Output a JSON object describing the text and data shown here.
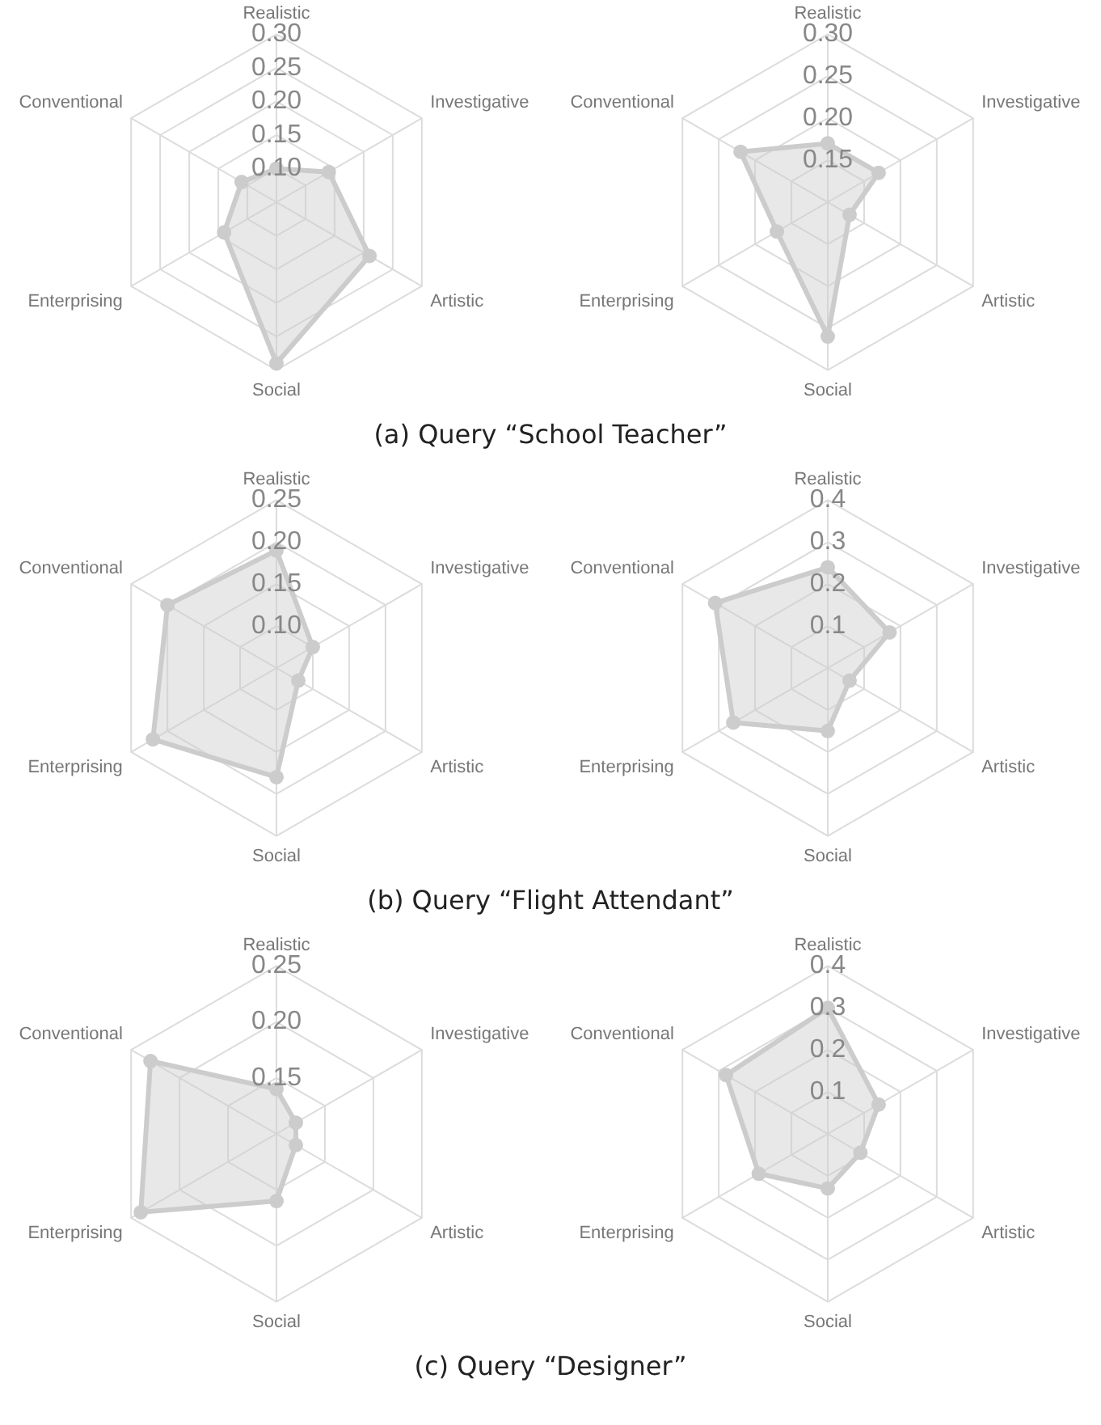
{
  "chart_data": [
    {
      "type": "radar",
      "categories": [
        "Realistic",
        "Investigative",
        "Artistic",
        "Social",
        "Enterprising",
        "Conventional"
      ],
      "series": [
        {
          "color": "#cccccc",
          "values": [
            0.1,
            0.14,
            0.21,
            0.29,
            0.14,
            0.11
          ]
        }
      ],
      "ylim": [
        0.05,
        0.3
      ],
      "yticks": [
        {
          "value": 0.1,
          "label": "0.10"
        },
        0.15,
        {
          "value": 0.2,
          "label": "0.20"
        },
        0.25,
        {
          "value": 0.3,
          "label": "0.30"
        }
      ],
      "legend": false,
      "marker": "circle",
      "annotations": [
        "(a) Query “School Teacher”"
      ]
    },
    {
      "type": "radar",
      "categories": [
        "Realistic",
        "Investigative",
        "Artistic",
        "Social",
        "Enterprising",
        "Conventional"
      ],
      "series": [
        {
          "color": "#cccccc",
          "values": [
            0.17,
            0.17,
            0.13,
            0.26,
            0.17,
            0.22
          ]
        }
      ],
      "ylim": [
        0.1,
        0.3
      ],
      "yticks": [
        0.15,
        {
          "value": 0.2,
          "label": "0.20"
        },
        0.25,
        {
          "value": 0.3,
          "label": "0.30"
        }
      ],
      "legend": false,
      "marker": "circle"
    },
    {
      "type": "radar",
      "categories": [
        "Realistic",
        "Investigative",
        "Artistic",
        "Social",
        "Enterprising",
        "Conventional"
      ],
      "series": [
        {
          "color": "#cccccc",
          "values": [
            0.19,
            0.1,
            0.08,
            0.18,
            0.22,
            0.2
          ]
        }
      ],
      "ylim": [
        0.05,
        0.25
      ],
      "yticks": [
        {
          "value": 0.1,
          "label": "0.10"
        },
        0.15,
        {
          "value": 0.2,
          "label": "0.20"
        },
        0.25
      ],
      "legend": false,
      "marker": "circle",
      "annotations": [
        "(b) Query “Flight Attendant”"
      ]
    },
    {
      "type": "radar",
      "categories": [
        "Realistic",
        "Investigative",
        "Artistic",
        "Social",
        "Enterprising",
        "Conventional"
      ],
      "series": [
        {
          "color": "#cccccc",
          "values": [
            0.24,
            0.17,
            0.06,
            0.15,
            0.26,
            0.31
          ]
        }
      ],
      "ylim": [
        0,
        0.4
      ],
      "yticks": [
        0.1,
        0.2,
        0.3,
        0.4
      ],
      "legend": false,
      "marker": "circle"
    },
    {
      "type": "radar",
      "categories": [
        "Realistic",
        "Investigative",
        "Artistic",
        "Social",
        "Enterprising",
        "Conventional"
      ],
      "series": [
        {
          "color": "#cccccc",
          "values": [
            0.14,
            0.12,
            0.12,
            0.16,
            0.24,
            0.23
          ]
        }
      ],
      "ylim": [
        0.1,
        0.25
      ],
      "yticks": [
        0.15,
        {
          "value": 0.2,
          "label": "0.20"
        },
        0.25
      ],
      "legend": false,
      "marker": "circle",
      "annotations": [
        "(c) Query “Designer”"
      ]
    },
    {
      "type": "radar",
      "categories": [
        "Realistic",
        "Investigative",
        "Artistic",
        "Social",
        "Enterprising",
        "Conventional"
      ],
      "series": [
        {
          "color": "#cccccc",
          "values": [
            0.3,
            0.14,
            0.09,
            0.13,
            0.19,
            0.28
          ]
        }
      ],
      "ylim": [
        0,
        0.4
      ],
      "yticks": [
        0.1,
        0.2,
        0.3,
        0.4
      ],
      "legend": false,
      "marker": "circle"
    }
  ]
}
